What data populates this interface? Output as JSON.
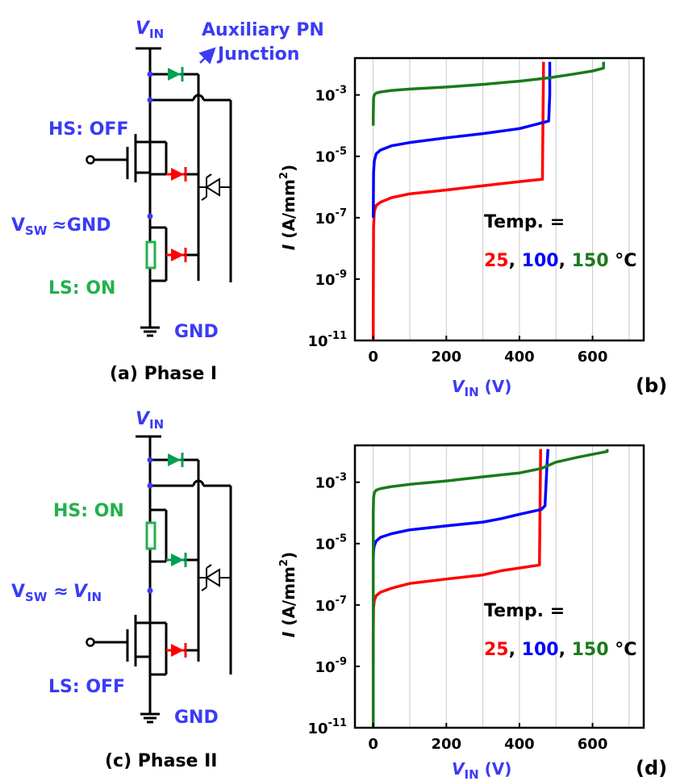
{
  "colors": {
    "red": "#ff0000",
    "blue": "#0000ff",
    "green": "#00a050",
    "curve_green": "#1a7a1a",
    "label_blue": "#3b3bf5",
    "label_green": "#22b14c",
    "black": "#000000"
  },
  "circuits": [
    {
      "id": "phase1",
      "vin_label": "V",
      "vin_sub": "IN",
      "aux_label_line1": "Auxiliary PN",
      "aux_label_line2": "Junction",
      "hs_label": "HS: OFF",
      "ls_label": "LS: ON",
      "vsw_label": "V",
      "vsw_sub": "SW",
      "vsw_rhs": "≈GND",
      "gnd_label": "GND",
      "caption": "(a) Phase I"
    },
    {
      "id": "phase2",
      "vin_label": "V",
      "vin_sub": "IN",
      "hs_label": "HS: ON",
      "ls_label": "LS: OFF",
      "vsw_label": "V",
      "vsw_sub": "SW",
      "vsw_rhs_sym": "≈",
      "vsw_rhs_v": "V",
      "vsw_rhs_sub": "IN",
      "gnd_label": "GND",
      "caption": "(c) Phase II"
    }
  ],
  "chart_data": [
    {
      "id": "b",
      "panel_label": "(b)",
      "type": "line",
      "xlabel_main": "V",
      "xlabel_sub": "IN",
      "xlabel_unit": " (V)",
      "ylabel": "I (A/mm²)",
      "xlim": [
        -50,
        740
      ],
      "ylim_log10": [
        -11,
        -1.8
      ],
      "y_scale": "log",
      "x_ticks": [
        "0",
        "200",
        "400",
        "600"
      ],
      "y_ticks": [
        "10-11",
        "10-9",
        "10-7",
        "10-5",
        "10-3"
      ],
      "annotation_line1": "Temp. =",
      "annotation_vals": [
        "25",
        ", ",
        "100",
        ", ",
        "150",
        " °C"
      ],
      "series": [
        {
          "name": "25",
          "color": "#ff0000",
          "x": [
            0,
            0,
            1,
            3,
            8,
            20,
            50,
            100,
            200,
            300,
            400,
            463,
            463,
            466
          ],
          "y": [
            1e-11,
            1e-10,
            5e-08,
            1.6e-07,
            2.5e-07,
            3.2e-07,
            4.5e-07,
            6e-07,
            8e-07,
            1.1e-06,
            1.5e-06,
            1.8e-06,
            3e-06,
            0.012
          ]
        },
        {
          "name": "100",
          "color": "#0000ff",
          "x": [
            0,
            0,
            1,
            3,
            8,
            20,
            50,
            100,
            200,
            300,
            400,
            480,
            480,
            483,
            483
          ],
          "y": [
            1e-07,
            1e-07,
            3e-06,
            7e-06,
            1.2e-05,
            1.6e-05,
            2.2e-05,
            2.8e-05,
            4e-05,
            5.5e-05,
            8e-05,
            0.00014,
            0.00014,
            0.001,
            0.012
          ]
        },
        {
          "name": "150",
          "color": "#1a7a1a",
          "x": [
            0,
            0,
            1,
            3,
            8,
            20,
            50,
            100,
            200,
            300,
            400,
            480,
            550,
            600,
            630,
            630
          ],
          "y": [
            0.0001,
            0.0002,
            0.0008,
            0.001,
            0.00115,
            0.00125,
            0.0014,
            0.00155,
            0.0018,
            0.0022,
            0.0028,
            0.0036,
            0.0048,
            0.006,
            0.0075,
            0.012
          ]
        }
      ]
    },
    {
      "id": "d",
      "panel_label": "(d)",
      "type": "line",
      "xlabel_main": "V",
      "xlabel_sub": "IN",
      "xlabel_unit": " (V)",
      "ylabel": "I (A/mm²)",
      "xlim": [
        -50,
        740
      ],
      "ylim_log10": [
        -11,
        -1.8
      ],
      "y_scale": "log",
      "x_ticks": [
        "0",
        "200",
        "400",
        "600"
      ],
      "y_ticks": [
        "10-11",
        "10-9",
        "10-7",
        "10-5",
        "10-3"
      ],
      "annotation_line1": "Temp. =",
      "annotation_vals": [
        "25",
        ", ",
        "100",
        ", ",
        "150",
        " °C"
      ],
      "series": [
        {
          "name": "25",
          "color": "#ff0000",
          "x": [
            0,
            0,
            1,
            3,
            8,
            20,
            50,
            100,
            200,
            300,
            350,
            400,
            455,
            455,
            458
          ],
          "y": [
            1e-09,
            1e-08,
            8e-08,
            1.4e-07,
            2e-07,
            2.6e-07,
            3.5e-07,
            5e-07,
            7e-07,
            9.5e-07,
            1.3e-06,
            1.6e-06,
            2e-06,
            3e-06,
            0.012
          ]
        },
        {
          "name": "100",
          "color": "#0000ff",
          "x": [
            0,
            0,
            1,
            3,
            8,
            20,
            50,
            100,
            200,
            300,
            350,
            400,
            460,
            470,
            475,
            478
          ],
          "y": [
            3e-06,
            3e-06,
            6e-06,
            8.5e-06,
            1.2e-05,
            1.6e-05,
            2.1e-05,
            2.8e-05,
            3.8e-05,
            5e-05,
            6.5e-05,
            9e-05,
            0.00013,
            0.00017,
            0.003,
            0.012
          ]
        },
        {
          "name": "150",
          "color": "#1a7a1a",
          "x": [
            0,
            0,
            1,
            3,
            8,
            20,
            50,
            100,
            200,
            300,
            400,
            460,
            500,
            560,
            620,
            640,
            640
          ],
          "y": [
            1e-11,
            0.0001,
            0.0003,
            0.00045,
            0.00055,
            0.00062,
            0.00072,
            0.00085,
            0.0011,
            0.0015,
            0.002,
            0.0028,
            0.0045,
            0.0065,
            0.009,
            0.01,
            0.012
          ]
        }
      ]
    }
  ]
}
